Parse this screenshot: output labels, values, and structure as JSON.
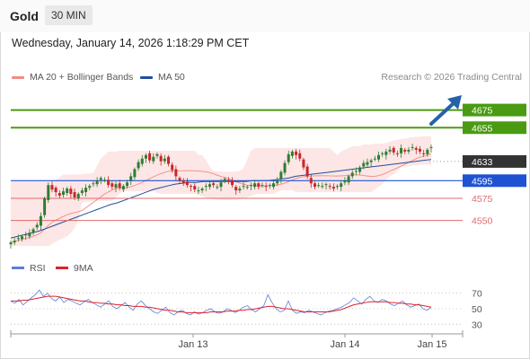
{
  "header": {
    "title": "Gold",
    "interval": "30 MIN"
  },
  "timestamp": "Wednesday, January 14, 2026 1:18:29 PM CET",
  "legend": {
    "ma20": {
      "label": "MA 20 + Bollinger Bands",
      "color": "#f28b82"
    },
    "ma50": {
      "label": "MA 50",
      "color": "#1f4e9e"
    }
  },
  "credit": "Research © 2026 Trading Central",
  "rsi_legend": {
    "rsi": {
      "label": "RSI",
      "color": "#5b7fd6"
    },
    "ma9": {
      "label": "9MA",
      "color": "#e0212b"
    }
  },
  "colors": {
    "up": "#2e7d32",
    "down": "#c62828",
    "resistance": "#4a9b12",
    "pivot": "#1f52d3",
    "support": "#e06b6b",
    "last": "#333333"
  },
  "chart_data": [
    {
      "type": "candlestick",
      "y_range": [
        4515,
        4700
      ],
      "x_axis": {
        "labels": [
          "Jan 13",
          "Jan 14",
          "Jan 15"
        ]
      },
      "levels": [
        {
          "value": 4675,
          "label": "4675",
          "kind": "resistance"
        },
        {
          "value": 4655,
          "label": "4655",
          "kind": "resistance"
        },
        {
          "value": 4633,
          "label": "4633",
          "kind": "last"
        },
        {
          "value": 4595,
          "label": "4595",
          "kind": "pivot"
        },
        {
          "value": 4575,
          "label": "4575",
          "kind": "support"
        },
        {
          "value": 4550,
          "label": "4550",
          "kind": "support"
        }
      ],
      "close_series": [
        4525,
        4527,
        4530,
        4532,
        4534,
        4536,
        4540,
        4545,
        4555,
        4575,
        4590,
        4585,
        4582,
        4578,
        4583,
        4586,
        4580,
        4576,
        4580,
        4584,
        4587,
        4589,
        4592,
        4595,
        4598,
        4596,
        4590,
        4588,
        4591,
        4587,
        4589,
        4593,
        4600,
        4608,
        4616,
        4620,
        4624,
        4618,
        4622,
        4625,
        4617,
        4620,
        4614,
        4607,
        4600,
        4595,
        4592,
        4590,
        4588,
        4585,
        4584,
        4586,
        4589,
        4591,
        4590,
        4588,
        4593,
        4597,
        4594,
        4590,
        4584,
        4586,
        4589,
        4588,
        4590,
        4592,
        4588,
        4590,
        4588,
        4590,
        4592,
        4595,
        4605,
        4615,
        4625,
        4628,
        4624,
        4620,
        4610,
        4600,
        4592,
        4588,
        4590,
        4589,
        4591,
        4588,
        4586,
        4589,
        4592,
        4595,
        4600,
        4604,
        4606,
        4610,
        4615,
        4616,
        4618,
        4620,
        4624,
        4626,
        4628,
        4630,
        4627,
        4625,
        4632,
        4628,
        4630,
        4633,
        4630,
        4628,
        4625,
        4630,
        4633
      ],
      "ma50_series": [
        4530,
        4532,
        4534,
        4536,
        4538,
        4541,
        4544,
        4547,
        4550,
        4553,
        4556,
        4559,
        4562,
        4565,
        4568,
        4570,
        4573,
        4576,
        4579,
        4582,
        4585,
        4587,
        4589,
        4591,
        4592,
        4593,
        4593,
        4594,
        4594,
        4594,
        4594,
        4594,
        4594,
        4594,
        4595,
        4595,
        4595,
        4596,
        4597,
        4598,
        4600,
        4601,
        4602,
        4603,
        4604,
        4605,
        4606,
        4607,
        4608,
        4609,
        4610,
        4611,
        4612,
        4613,
        4614,
        4615,
        4616,
        4617,
        4618,
        4619
      ],
      "bollinger": {
        "ma20_label": "MA 20",
        "bands": "Bollinger Bands"
      }
    },
    {
      "type": "line",
      "y_ticks": [
        70,
        50,
        30
      ],
      "y_range": [
        20,
        80
      ],
      "series": [
        {
          "name": "RSI",
          "values": [
            60,
            57,
            62,
            55,
            59,
            64,
            68,
            74,
            66,
            70,
            63,
            60,
            65,
            58,
            62,
            60,
            57,
            55,
            59,
            62,
            58,
            55,
            52,
            56,
            60,
            53,
            50,
            54,
            58,
            52,
            48,
            56,
            60,
            54,
            50,
            46,
            44,
            48,
            52,
            45,
            42,
            46,
            48,
            44,
            42,
            46,
            43,
            45,
            48,
            50,
            46,
            44,
            46,
            50,
            48,
            45,
            48,
            52,
            54,
            49,
            46,
            50,
            54,
            68,
            58,
            50,
            46,
            48,
            60,
            48,
            44,
            46,
            45,
            48,
            46,
            44,
            42,
            45,
            47,
            48,
            50,
            52,
            55,
            58,
            64,
            60,
            56,
            62,
            66,
            60,
            58,
            62,
            60,
            56,
            54,
            57,
            60,
            55,
            52,
            54,
            56,
            50,
            48,
            52
          ]
        },
        {
          "name": "9MA",
          "values": [
            60,
            60,
            60,
            61,
            61,
            62,
            63,
            64,
            65,
            66,
            66,
            66,
            65,
            64,
            63,
            62,
            61,
            60,
            60,
            59,
            58,
            58,
            57,
            57,
            56,
            56,
            55,
            55,
            54,
            54,
            53,
            53,
            53,
            52,
            52,
            51,
            50,
            49,
            48,
            48,
            47,
            46,
            46,
            45,
            45,
            45,
            45,
            45,
            45,
            46,
            46,
            46,
            46,
            47,
            47,
            47,
            48,
            48,
            49,
            49,
            50,
            51,
            52,
            53,
            53,
            52,
            51,
            50,
            50,
            49,
            48,
            47,
            46,
            46,
            46,
            46,
            46,
            46,
            46,
            47,
            48,
            49,
            51,
            53,
            55,
            56,
            57,
            58,
            59,
            59,
            59,
            59,
            59,
            58,
            58,
            57,
            57,
            56,
            56,
            55,
            55,
            54,
            53,
            52
          ]
        }
      ]
    }
  ]
}
